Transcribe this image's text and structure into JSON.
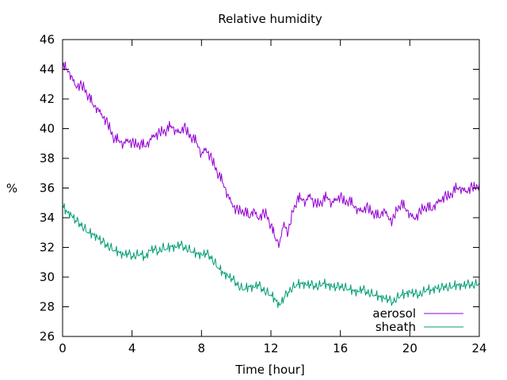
{
  "chart_data": {
    "type": "line",
    "title": "Relative humidity",
    "xlabel": "Time [hour]",
    "ylabel": "%",
    "xlim": [
      0,
      24
    ],
    "ylim": [
      26,
      46
    ],
    "xticks": [
      0,
      4,
      8,
      12,
      16,
      20,
      24
    ],
    "yticks": [
      26,
      28,
      30,
      32,
      34,
      36,
      38,
      40,
      42,
      44,
      46
    ],
    "grid": false,
    "legend": "bottom-right",
    "series": [
      {
        "name": "aerosol",
        "color": "#9400d3",
        "x": [
          0,
          0.25,
          0.5,
          0.75,
          1,
          1.25,
          1.5,
          1.75,
          2,
          2.25,
          2.5,
          2.75,
          3,
          3.25,
          3.5,
          3.75,
          4,
          4.25,
          4.5,
          4.75,
          5,
          5.25,
          5.5,
          5.75,
          6,
          6.25,
          6.5,
          6.75,
          7,
          7.25,
          7.5,
          7.75,
          8,
          8.25,
          8.5,
          8.75,
          9,
          9.25,
          9.5,
          9.75,
          10,
          10.25,
          10.5,
          10.75,
          11,
          11.25,
          11.5,
          11.75,
          12,
          12.25,
          12.5,
          12.75,
          13,
          13.25,
          13.5,
          13.75,
          14,
          14.25,
          14.5,
          14.75,
          15,
          15.25,
          15.5,
          15.75,
          16,
          16.25,
          16.5,
          16.75,
          17,
          17.25,
          17.5,
          17.75,
          18,
          18.25,
          18.5,
          18.75,
          19,
          19.25,
          19.5,
          19.75,
          20,
          20.25,
          20.5,
          20.75,
          21,
          21.25,
          21.5,
          21.75,
          22,
          22.25,
          22.5,
          22.75,
          23,
          23.25,
          23.5,
          23.75,
          24
        ],
        "values": [
          44.2,
          44.0,
          43.6,
          42.9,
          43.0,
          42.7,
          42.2,
          41.6,
          41.4,
          41.0,
          40.6,
          39.9,
          39.3,
          39.2,
          39.0,
          39.3,
          39.1,
          38.9,
          39.0,
          38.8,
          39.2,
          39.6,
          39.7,
          39.8,
          39.9,
          40.2,
          39.9,
          39.8,
          40.2,
          39.6,
          39.4,
          39.0,
          38.3,
          38.7,
          38.2,
          37.5,
          36.9,
          36.3,
          35.6,
          35.0,
          34.6,
          34.4,
          34.5,
          34.0,
          34.6,
          34.0,
          34.3,
          34.2,
          33.5,
          32.6,
          32.3,
          33.7,
          33.0,
          34.4,
          35.2,
          35.3,
          35.1,
          35.6,
          35.0,
          34.9,
          35.2,
          35.4,
          35.0,
          35.3,
          35.5,
          35.0,
          35.2,
          34.8,
          34.6,
          34.5,
          34.8,
          34.4,
          34.3,
          34.0,
          34.6,
          34.1,
          33.8,
          34.5,
          35.0,
          34.6,
          34.3,
          34.0,
          34.3,
          34.6,
          34.8,
          34.5,
          35.0,
          35.2,
          35.5,
          35.4,
          35.8,
          36.0,
          36.0,
          35.8,
          36.1,
          36.0,
          36.3
        ],
        "noise": [
          0.0,
          0.1,
          -0.2,
          0.3,
          -0.1,
          0.2,
          -0.3,
          0.1,
          0.2,
          -0.2,
          0.3,
          0.0,
          -0.3,
          0.2,
          -0.1,
          0.3,
          -0.2,
          0.0,
          0.2,
          -0.3,
          0.1,
          0.3,
          -0.1,
          -0.2,
          0.2,
          0.0,
          -0.3,
          0.3,
          0.1,
          -0.2
        ]
      },
      {
        "name": "sheath",
        "color": "#009e73",
        "x": [
          0,
          0.25,
          0.5,
          0.75,
          1,
          1.25,
          1.5,
          1.75,
          2,
          2.25,
          2.5,
          2.75,
          3,
          3.25,
          3.5,
          3.75,
          4,
          4.25,
          4.5,
          4.75,
          5,
          5.25,
          5.5,
          5.75,
          6,
          6.25,
          6.5,
          6.75,
          7,
          7.25,
          7.5,
          7.75,
          8,
          8.25,
          8.5,
          8.75,
          9,
          9.25,
          9.5,
          9.75,
          10,
          10.25,
          10.5,
          10.75,
          11,
          11.25,
          11.5,
          11.75,
          12,
          12.25,
          12.5,
          12.75,
          13,
          13.25,
          13.5,
          13.75,
          14,
          14.25,
          14.5,
          14.75,
          15,
          15.25,
          15.5,
          15.75,
          16,
          16.25,
          16.5,
          16.75,
          17,
          17.25,
          17.5,
          17.75,
          18,
          18.25,
          18.5,
          18.75,
          19,
          19.25,
          19.5,
          19.75,
          20,
          20.25,
          20.5,
          20.75,
          21,
          21.25,
          21.5,
          21.75,
          22,
          22.25,
          22.5,
          22.75,
          23,
          23.25,
          23.5,
          23.75,
          24
        ],
        "values": [
          34.8,
          34.4,
          34.2,
          33.8,
          33.6,
          33.3,
          33.0,
          32.9,
          32.7,
          32.4,
          32.2,
          32.0,
          31.8,
          31.7,
          31.5,
          31.6,
          31.4,
          31.5,
          31.6,
          31.3,
          31.8,
          31.9,
          31.7,
          32.0,
          31.9,
          32.1,
          32.0,
          32.2,
          32.0,
          31.9,
          31.7,
          31.6,
          31.5,
          31.6,
          31.4,
          31.0,
          30.6,
          30.3,
          30.1,
          29.9,
          29.6,
          29.3,
          29.2,
          29.4,
          29.3,
          29.5,
          29.2,
          29.0,
          28.8,
          28.5,
          28.1,
          28.6,
          29.0,
          29.3,
          29.5,
          29.6,
          29.5,
          29.5,
          29.4,
          29.4,
          29.6,
          29.5,
          29.4,
          29.3,
          29.4,
          29.3,
          29.2,
          29.1,
          29.0,
          29.2,
          29.0,
          28.9,
          28.8,
          28.7,
          28.6,
          28.5,
          28.3,
          28.6,
          28.8,
          28.9,
          29.0,
          28.9,
          28.8,
          29.0,
          29.2,
          29.1,
          29.3,
          29.2,
          29.4,
          29.3,
          29.4,
          29.5,
          29.4,
          29.5,
          29.5,
          29.5,
          29.6
        ],
        "noise": [
          0.0,
          -0.1,
          0.2,
          -0.2,
          0.1,
          0.2,
          -0.1,
          0.0,
          -0.2,
          0.2,
          0.1,
          -0.1,
          0.0,
          0.2,
          -0.2,
          0.1,
          -0.1,
          0.2,
          0.0,
          -0.2,
          0.1,
          -0.1,
          0.2,
          0.0,
          -0.2,
          0.1,
          0.2,
          -0.1,
          0.0,
          -0.2
        ]
      }
    ]
  }
}
